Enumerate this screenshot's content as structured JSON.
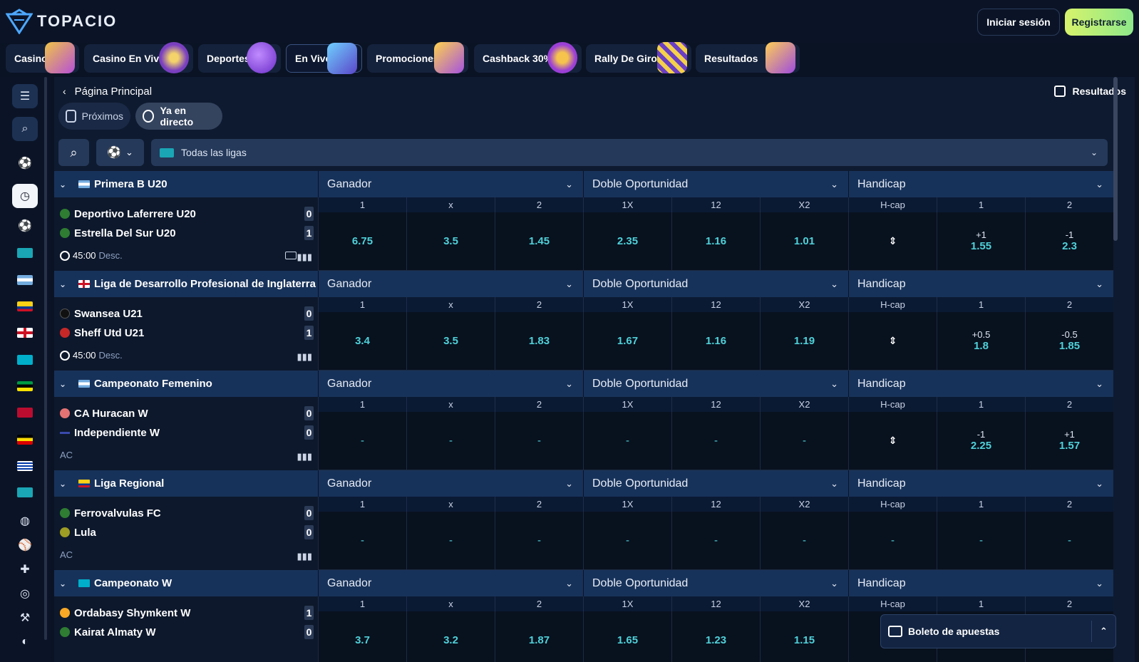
{
  "brand": {
    "name": "TOPACIO"
  },
  "header": {
    "login_label": "Iniciar sesión",
    "register_label": "Registrarse"
  },
  "nav": [
    {
      "label": "Casino",
      "icon": "slot-machine-icon"
    },
    {
      "label": "Casino En Vivo",
      "icon": "roulette-icon"
    },
    {
      "label": "Deportes",
      "icon": "soccer-ball-icon"
    },
    {
      "label": "En Vivo",
      "icon": "live-tv-icon"
    },
    {
      "label": "Promociones",
      "icon": "gift-icon"
    },
    {
      "label": "Cashback 30%",
      "icon": "money-bag-icon"
    },
    {
      "label": "Rally De Giros",
      "icon": "checkered-flag-icon"
    },
    {
      "label": "Resultados",
      "icon": "clipboard-icon"
    }
  ],
  "breadcrumb": {
    "label": "Página Principal"
  },
  "results_link": "Resultados",
  "mode_tabs": {
    "upcoming": "Próximos",
    "live": "Ya en directo"
  },
  "filter": {
    "league_placeholder": "Todas las ligas"
  },
  "markets": {
    "winner": "Ganador",
    "double": "Doble Oportunidad",
    "handicap": "Handicap"
  },
  "columns": [
    "1",
    "x",
    "2",
    "1X",
    "12",
    "X2",
    "H-cap",
    "1",
    "2"
  ],
  "leagues": [
    {
      "name": "Primera B U20",
      "flag": "argentina",
      "home": {
        "name": "Deportivo Laferrere U20",
        "score": "0"
      },
      "away": {
        "name": "Estrella Del Sur U20",
        "score": "1"
      },
      "time": "45:00",
      "status": "Desc.",
      "odds": [
        "6.75",
        "3.5",
        "1.45",
        "2.35",
        "1.16",
        "1.01"
      ],
      "hcap": {
        "h1_line": "+1",
        "h1_odd": "1.55",
        "h2_line": "-1",
        "h2_odd": "2.3"
      }
    },
    {
      "name": "Liga de Desarrollo Profesional de Inglaterra",
      "flag": "england",
      "home": {
        "name": "Swansea U21",
        "score": "0"
      },
      "away": {
        "name": "Sheff Utd U21",
        "score": "1"
      },
      "time": "45:00",
      "status": "Desc.",
      "odds": [
        "3.4",
        "3.5",
        "1.83",
        "1.67",
        "1.16",
        "1.19"
      ],
      "hcap": {
        "h1_line": "+0.5",
        "h1_odd": "1.8",
        "h2_line": "-0.5",
        "h2_odd": "1.85"
      }
    },
    {
      "name": "Campeonato Femenino",
      "flag": "argentina",
      "home": {
        "name": "CA Huracan W",
        "score": "0"
      },
      "away": {
        "name": "Independiente W",
        "score": "0"
      },
      "time": "",
      "status": "AC",
      "odds": [
        "-",
        "-",
        "-",
        "-",
        "-",
        "-"
      ],
      "hcap": {
        "h1_line": "-1",
        "h1_odd": "2.25",
        "h2_line": "+1",
        "h2_odd": "1.57"
      }
    },
    {
      "name": "Liga Regional",
      "flag": "colombia",
      "home": {
        "name": "Ferrovalvulas FC",
        "score": "0"
      },
      "away": {
        "name": "Lula",
        "score": "0"
      },
      "time": "",
      "status": "AC",
      "odds": [
        "-",
        "-",
        "-",
        "-",
        "-",
        "-"
      ],
      "hcap": {
        "h1_line": "",
        "h1_odd": "-",
        "h2_line": "",
        "h2_odd": "-",
        "hcap_cell": "-"
      }
    },
    {
      "name": "Campeonato W",
      "flag": "kazakhstan",
      "home": {
        "name": "Ordabasy Shymkent W",
        "score": "1"
      },
      "away": {
        "name": "Kairat Almaty W",
        "score": "0"
      },
      "time": "",
      "status": "",
      "odds": [
        "3.7",
        "3.2",
        "1.87",
        "1.65",
        "1.23",
        "1.15"
      ],
      "hcap": {
        "h1_line": "",
        "h1_odd": "",
        "h2_line": "",
        "h2_odd": ""
      }
    }
  ],
  "betslip": {
    "label": "Boleto de apuestas"
  },
  "colors": {
    "accent": "#4fd1d9",
    "header_blue": "#17325a",
    "register_start": "#d7f36b",
    "register_end": "#8ee88a"
  }
}
